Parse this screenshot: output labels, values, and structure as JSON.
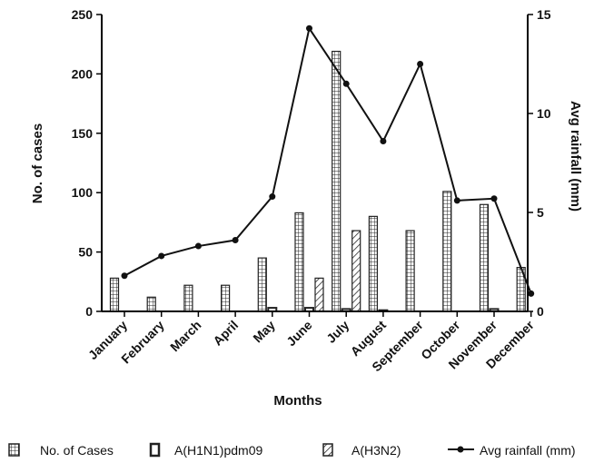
{
  "chart_data": {
    "type": "bar",
    "categories": [
      "January",
      "February",
      "March",
      "April",
      "May",
      "June",
      "July",
      "August",
      "September",
      "October",
      "November",
      "December"
    ],
    "series": [
      {
        "name": "No. of Cases",
        "axis": "left",
        "kind": "bar",
        "pattern": "grid",
        "values": [
          28,
          12,
          22,
          22,
          45,
          83,
          219,
          80,
          68,
          101,
          90,
          37
        ]
      },
      {
        "name": "A(H1N1)pdm09",
        "axis": "left",
        "kind": "bar",
        "pattern": "outline",
        "values": [
          0,
          0,
          0,
          0,
          3,
          3,
          2,
          1,
          0,
          0,
          2,
          0
        ]
      },
      {
        "name": "A(H3N2)",
        "axis": "left",
        "kind": "bar",
        "pattern": "hatch",
        "values": [
          0,
          0,
          0,
          0,
          0,
          28,
          68,
          0,
          0,
          0,
          0,
          0
        ]
      },
      {
        "name": "Avg rainfall (mm)",
        "axis": "right",
        "kind": "line",
        "values": [
          1.8,
          2.8,
          3.3,
          3.6,
          5.8,
          14.3,
          11.5,
          8.6,
          12.5,
          5.6,
          5.7,
          0.9
        ]
      }
    ],
    "xlabel": "Months",
    "ylabel": "No. of cases",
    "y2label": "Avg rainfall (mm)",
    "ylim": [
      0,
      250
    ],
    "y2lim": [
      0,
      15
    ],
    "yticks": [
      0,
      50,
      100,
      150,
      200,
      250
    ],
    "y2ticks": [
      0,
      5,
      10,
      15
    ],
    "grid": false,
    "legend_position": "bottom"
  },
  "legend": [
    {
      "label": "No. of Cases",
      "icon": "grid-pattern-swatch"
    },
    {
      "label": "A(H1N1)pdm09",
      "icon": "outline-swatch"
    },
    {
      "label": "A(H3N2)",
      "icon": "hatch-swatch"
    },
    {
      "label": "Avg rainfall (mm)",
      "icon": "line-dot-swatch"
    }
  ]
}
